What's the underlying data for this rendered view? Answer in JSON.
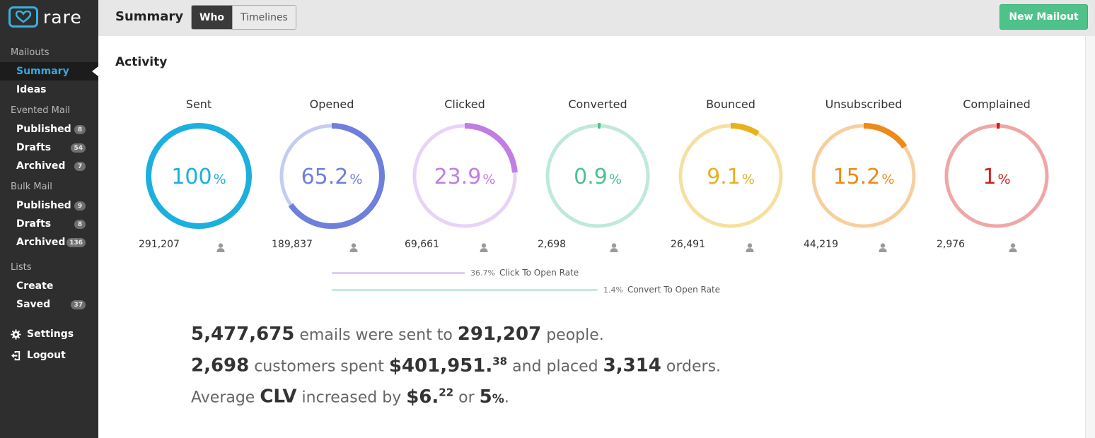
{
  "app": {
    "logo_text": "rare"
  },
  "sidebar": {
    "sections": [
      {
        "label": "Mailouts",
        "items": [
          {
            "label": "Summary",
            "active": true
          },
          {
            "label": "Ideas"
          }
        ]
      },
      {
        "label": "Evented Mail",
        "items": [
          {
            "label": "Published",
            "badge": "8"
          },
          {
            "label": "Drafts",
            "badge": "54"
          },
          {
            "label": "Archived",
            "badge": "7"
          }
        ]
      },
      {
        "label": "Bulk Mail",
        "items": [
          {
            "label": "Published",
            "badge": "9"
          },
          {
            "label": "Drafts",
            "badge": "8"
          },
          {
            "label": "Archived",
            "badge": "136"
          }
        ]
      },
      {
        "label": "Lists",
        "items": [
          {
            "label": "Create"
          },
          {
            "label": "Saved",
            "badge": "37"
          }
        ]
      }
    ],
    "settings_label": "Settings",
    "logout_label": "Logout"
  },
  "header": {
    "title": "Summary",
    "tabs": [
      {
        "label": "Who",
        "active": true
      },
      {
        "label": "Timelines"
      }
    ],
    "new_button": "New Mailout"
  },
  "activity": {
    "title": "Activity",
    "metrics": [
      {
        "label": "Sent",
        "value": "100",
        "unit": "%",
        "percent": 100,
        "count": "291,207",
        "color": "#1bb0de",
        "track": "#1bb0de"
      },
      {
        "label": "Opened",
        "value": "65.2",
        "unit": "%",
        "percent": 65.2,
        "count": "189,837",
        "color": "#6f7fdc",
        "track": "#c6ccf0"
      },
      {
        "label": "Clicked",
        "value": "23.9",
        "unit": "%",
        "percent": 23.9,
        "count": "69,661",
        "color": "#c07ee2",
        "track": "#e8d3f5"
      },
      {
        "label": "Converted",
        "value": "0.9",
        "unit": "%",
        "percent": 0.9,
        "count": "2,698",
        "color": "#4fbf92",
        "track": "#bfe9d8"
      },
      {
        "label": "Bounced",
        "value": "9.1",
        "unit": "%",
        "percent": 9.1,
        "count": "26,491",
        "color": "#e6b21c",
        "track": "#f6e0a0"
      },
      {
        "label": "Unsubscribed",
        "value": "15.2",
        "unit": "%",
        "percent": 15.2,
        "count": "44,219",
        "color": "#ee8a16",
        "track": "#f7cf9f"
      },
      {
        "label": "Complained",
        "value": "1",
        "unit": "%",
        "percent": 1,
        "count": "2,976",
        "color": "#d11f1f",
        "track": "#f0a6a6"
      }
    ],
    "rates": [
      {
        "value": "36.7%",
        "label": "Click To Open Rate",
        "color": "#e1cdf3"
      },
      {
        "value": "1.4%",
        "label": "Convert To Open Rate",
        "color": "#c4ebdc"
      }
    ]
  },
  "summary": {
    "emails_sent": "5,477,675",
    "sent_text": "emails were sent to",
    "people": "291,207",
    "people_text": "people.",
    "customers": "2,698",
    "customers_text": "customers spent",
    "spent_main": "$401,951.",
    "spent_cents": "38",
    "placed_text": "and placed",
    "orders": "3,314",
    "orders_text": "orders.",
    "avg_text": "Average",
    "clv": "CLV",
    "increased_text": "increased by",
    "clv_main": "$6.",
    "clv_cents": "22",
    "or_text": "or",
    "clv_pct": "5",
    "clv_pct_unit": "%",
    "period": "."
  }
}
